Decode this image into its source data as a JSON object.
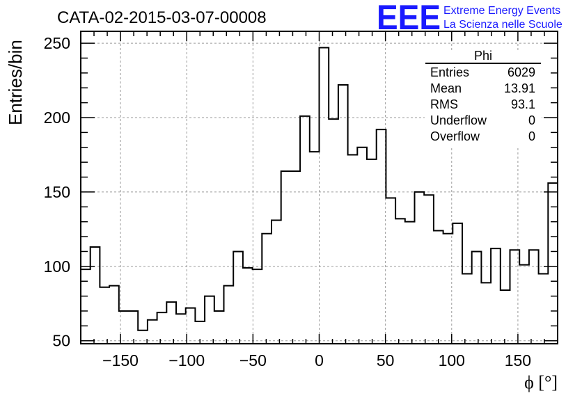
{
  "title": "CATA-02-2015-03-07-00008",
  "logo": {
    "letters": "EEE",
    "line1": "Extreme Energy Events",
    "line2": "La Scienza nelle Scuole",
    "color": "#1a1aff"
  },
  "stats": {
    "header": "Phi",
    "rows": [
      {
        "label": "Entries",
        "value": "6029"
      },
      {
        "label": "Mean",
        "value": "13.91"
      },
      {
        "label": "RMS",
        "value": "93.1"
      },
      {
        "label": "Underflow",
        "value": "0"
      },
      {
        "label": "Overflow",
        "value": "0"
      }
    ]
  },
  "chart_data": {
    "type": "histogram",
    "title": "CATA-02-2015-03-07-00008",
    "xlabel": "ϕ [°]",
    "ylabel": "Entries/bin",
    "xlim": [
      -180,
      180
    ],
    "ylim": [
      48,
      258
    ],
    "grid": true,
    "bin_width": 7.2,
    "bin_edges_start": -180,
    "values": [
      98,
      113,
      86,
      87,
      70,
      70,
      57,
      64,
      69,
      76,
      68,
      72,
      63,
      80,
      70,
      87,
      110,
      99,
      98,
      122,
      131,
      164,
      164,
      201,
      177,
      247,
      199,
      222,
      175,
      180,
      172,
      192,
      146,
      132,
      130,
      150,
      148,
      124,
      122,
      129,
      95,
      110,
      89,
      112,
      84,
      111,
      101,
      111,
      95,
      156
    ],
    "x_ticks": [
      -150,
      -100,
      -50,
      0,
      50,
      100,
      150
    ],
    "x_tick_labels": [
      "−150",
      "−100",
      "−50",
      "0",
      "50",
      "100",
      "150"
    ],
    "y_ticks": [
      50,
      100,
      150,
      200,
      250
    ],
    "y_tick_labels": [
      "50",
      "100",
      "150",
      "200",
      "250"
    ],
    "line_color": "#000000",
    "grid_color": "#9a9a9a"
  }
}
